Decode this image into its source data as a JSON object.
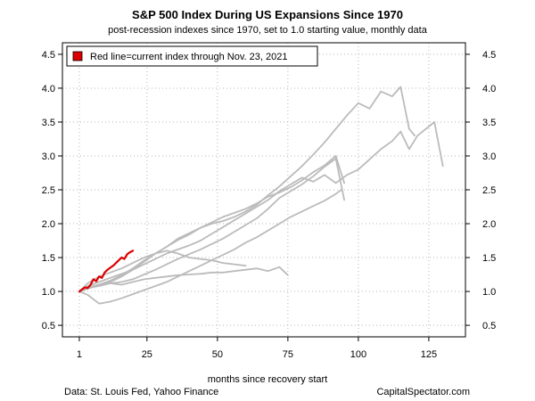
{
  "chart_data": {
    "type": "line",
    "title": "S&P 500 Index During US Expansions Since 1970",
    "subtitle": "post-recession indexes since 1970, set to 1.0 starting value, monthly data",
    "xlabel": "months since recovery start",
    "ylabel": "",
    "xlim": [
      -5,
      138
    ],
    "ylim": [
      0.33,
      4.67
    ],
    "x_ticks": [
      1,
      25,
      50,
      75,
      100,
      125
    ],
    "y_ticks": [
      0.5,
      1.0,
      1.5,
      2.0,
      2.5,
      3.0,
      3.5,
      4.0,
      4.5
    ],
    "y_tick_labels": [
      "0.5",
      "1.0",
      "1.5",
      "2.0",
      "2.5",
      "3.0",
      "3.5",
      "4.0",
      "4.5"
    ],
    "x_tick_labels": [
      "1",
      "25",
      "50",
      "75",
      "100",
      "125"
    ],
    "grid": true,
    "right_axis": true,
    "legend_placement": "top-left",
    "legend_label": "Red line=current index through Nov. 23, 2021",
    "colors": {
      "current": "#dd0000",
      "history": "#bbbbbb",
      "grid": "#b5b5b5"
    },
    "series": [
      {
        "current": true,
        "x": [
          1,
          2,
          3,
          4,
          5,
          6,
          7,
          8,
          9,
          10,
          11,
          12,
          13,
          14,
          15,
          16,
          17,
          18,
          19,
          20
        ],
        "y": [
          1.0,
          1.03,
          1.06,
          1.05,
          1.1,
          1.18,
          1.15,
          1.22,
          1.2,
          1.28,
          1.32,
          1.35,
          1.38,
          1.42,
          1.46,
          1.5,
          1.48,
          1.55,
          1.58,
          1.6
        ]
      },
      {
        "x": [
          1,
          4,
          8,
          12,
          16,
          20,
          24,
          28,
          32,
          36,
          40,
          44,
          48,
          52,
          56,
          60,
          64,
          68,
          72,
          76,
          80,
          84,
          88,
          92,
          95
        ],
        "y": [
          1.0,
          1.05,
          1.1,
          1.12,
          1.14,
          1.18,
          1.25,
          1.32,
          1.4,
          1.48,
          1.55,
          1.62,
          1.7,
          1.78,
          1.88,
          1.98,
          2.08,
          2.22,
          2.38,
          2.48,
          2.58,
          2.7,
          2.84,
          2.96,
          2.35
        ]
      },
      {
        "x": [
          1,
          4,
          8,
          12,
          16,
          20,
          24,
          28,
          32,
          36,
          40,
          44,
          48,
          52,
          56,
          60,
          64,
          68,
          72,
          76,
          80,
          84,
          88,
          92,
          96,
          100,
          104,
          108,
          112,
          115,
          118,
          121,
          124,
          127,
          130
        ],
        "y": [
          1.0,
          1.08,
          1.14,
          1.2,
          1.26,
          1.32,
          1.4,
          1.48,
          1.56,
          1.62,
          1.68,
          1.75,
          1.85,
          1.95,
          2.05,
          2.15,
          2.25,
          2.35,
          2.48,
          2.58,
          2.68,
          2.62,
          2.72,
          2.6,
          2.72,
          2.8,
          2.95,
          3.1,
          3.22,
          3.36,
          3.1,
          3.3,
          3.4,
          3.5,
          2.85
        ]
      },
      {
        "x": [
          1,
          4,
          8,
          12,
          16,
          20,
          24,
          28,
          32,
          36,
          40,
          44,
          48,
          52,
          56,
          60,
          64,
          68,
          72,
          76,
          80,
          84,
          88,
          92,
          96,
          100,
          104,
          108,
          112,
          115,
          118,
          120
        ],
        "y": [
          1.0,
          1.04,
          1.1,
          1.16,
          1.24,
          1.34,
          1.46,
          1.56,
          1.66,
          1.78,
          1.86,
          1.94,
          2.0,
          2.04,
          2.1,
          2.18,
          2.28,
          2.42,
          2.55,
          2.7,
          2.85,
          3.02,
          3.2,
          3.4,
          3.6,
          3.78,
          3.7,
          3.95,
          3.88,
          4.02,
          3.4,
          3.3
        ]
      },
      {
        "x": [
          1,
          4,
          8,
          12,
          16,
          20,
          24,
          28,
          32,
          36,
          40,
          44,
          48,
          52,
          56,
          60,
          64,
          68,
          72,
          75
        ],
        "y": [
          1.0,
          1.05,
          1.08,
          1.12,
          1.1,
          1.14,
          1.18,
          1.2,
          1.22,
          1.24,
          1.25,
          1.26,
          1.28,
          1.28,
          1.3,
          1.32,
          1.34,
          1.3,
          1.36,
          1.24
        ]
      },
      {
        "x": [
          1,
          4,
          8,
          12,
          16,
          20,
          24,
          28,
          32,
          36,
          40,
          44,
          48,
          52,
          56,
          60
        ],
        "y": [
          1.0,
          1.12,
          1.22,
          1.28,
          1.34,
          1.42,
          1.5,
          1.56,
          1.6,
          1.56,
          1.5,
          1.48,
          1.46,
          1.42,
          1.4,
          1.38
        ]
      },
      {
        "x": [
          1,
          4,
          8,
          12,
          16,
          20,
          24,
          28,
          32,
          36,
          40,
          44,
          48,
          52,
          56,
          60,
          64,
          68,
          72,
          76,
          80,
          84,
          88,
          92,
          95
        ],
        "y": [
          1.0,
          1.06,
          1.1,
          1.14,
          1.22,
          1.32,
          1.44,
          1.56,
          1.66,
          1.76,
          1.84,
          1.94,
          2.02,
          2.1,
          2.16,
          2.22,
          2.3,
          2.4,
          2.46,
          2.54,
          2.64,
          2.76,
          2.86,
          3.0,
          2.6
        ]
      },
      {
        "x": [
          1,
          4,
          8,
          12,
          16,
          20,
          24,
          28,
          32,
          36,
          40,
          44,
          48,
          52,
          56,
          60,
          64,
          68,
          72,
          76,
          80,
          84,
          88,
          92,
          94
        ],
        "y": [
          1.0,
          0.95,
          0.82,
          0.85,
          0.9,
          0.96,
          1.02,
          1.08,
          1.14,
          1.22,
          1.3,
          1.38,
          1.46,
          1.54,
          1.62,
          1.72,
          1.8,
          1.9,
          2.0,
          2.1,
          2.18,
          2.26,
          2.34,
          2.44,
          2.5
        ]
      }
    ]
  },
  "footer": {
    "source": "Data: St. Louis Fed, Yahoo Finance",
    "brand": "CapitalSpectator.com"
  }
}
